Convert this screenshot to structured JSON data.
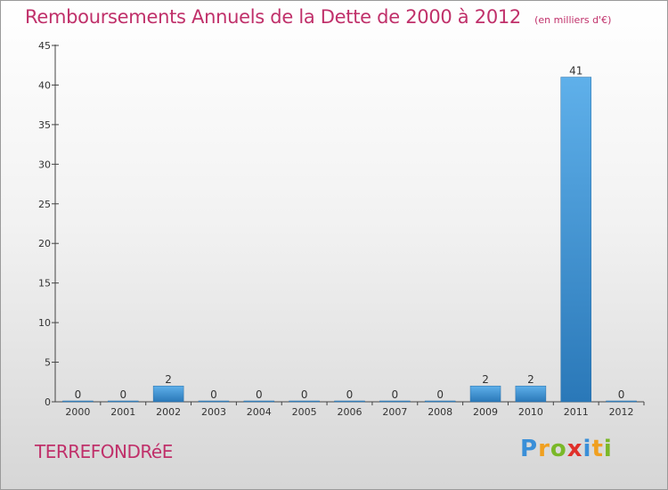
{
  "header": {
    "title": "Remboursements Annuels de la Dette de 2000 à 2012",
    "unit": "(en milliers d'€)"
  },
  "footer": {
    "town": "TERREFONDRéE",
    "logo_letters": [
      {
        "char": "P",
        "color": "#3a8fd8"
      },
      {
        "char": "r",
        "color": "#f0a020"
      },
      {
        "char": "o",
        "color": "#7ab828"
      },
      {
        "char": "x",
        "color": "#e0302a"
      },
      {
        "char": "i",
        "color": "#3a8fd8"
      },
      {
        "char": "t",
        "color": "#f0a020"
      },
      {
        "char": "i",
        "color": "#7ab828"
      }
    ]
  },
  "colors": {
    "accent": "#c0306a",
    "bar_top": "#5fb0ea",
    "bar_bottom": "#2a78b8"
  },
  "chart_data": {
    "type": "bar",
    "title": "Remboursements Annuels de la Dette de 2000 à 2012",
    "subtitle": "(en milliers d'€)",
    "categories": [
      "2000",
      "2001",
      "2002",
      "2003",
      "2004",
      "2005",
      "2006",
      "2007",
      "2008",
      "2009",
      "2010",
      "2011",
      "2012"
    ],
    "values": [
      0,
      0,
      2,
      0,
      0,
      0,
      0,
      0,
      0,
      2,
      2,
      41,
      0
    ],
    "data_labels": [
      "0",
      "0",
      "2",
      "0",
      "0",
      "0",
      "0",
      "0",
      "0",
      "2",
      "2",
      "41",
      "0"
    ],
    "ylim": [
      0,
      45
    ],
    "yticks": [
      0,
      5,
      10,
      15,
      20,
      25,
      30,
      35,
      40,
      45
    ],
    "grid": false,
    "legend": "none"
  }
}
